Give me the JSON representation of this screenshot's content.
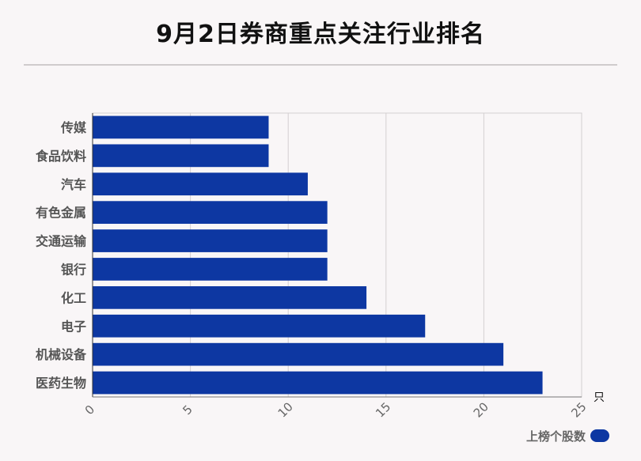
{
  "page": {
    "title": "9月2日券商重点关注行业排名"
  },
  "legend": {
    "label": "上榜个股数",
    "color": "#0d37a2"
  },
  "chart_data": {
    "type": "bar",
    "orientation": "horizontal",
    "title": "9月2日券商重点关注行业排名",
    "categories": [
      "传媒",
      "食品饮料",
      "汽车",
      "有色金属",
      "交通运输",
      "银行",
      "化工",
      "电子",
      "机械设备",
      "医药生物"
    ],
    "series": [
      {
        "name": "上榜个股数",
        "values": [
          9,
          9,
          11,
          12,
          12,
          12,
          14,
          17,
          21,
          23
        ]
      }
    ],
    "xlabel": "",
    "ylabel": "",
    "unit": "只",
    "xlim": [
      0,
      25
    ],
    "xticks": [
      0,
      5,
      10,
      15,
      20,
      25
    ],
    "grid": true,
    "legend_position": "bottom-right",
    "bar_color": "#0d37a2"
  }
}
